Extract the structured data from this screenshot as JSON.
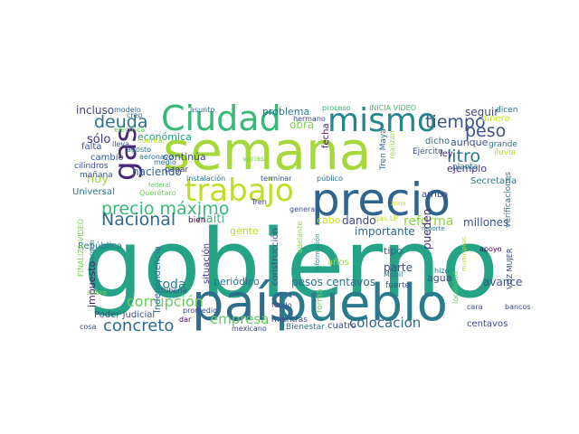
{
  "words": [
    {
      "text": "gobierno",
      "color": "#25a386"
    },
    {
      "text": "semana",
      "color": "#a6d83c"
    },
    {
      "text": "pueblo",
      "color": "#2a7a8e"
    },
    {
      "text": "país",
      "color": "#2d6e8e"
    },
    {
      "text": "precio",
      "color": "#31648d"
    },
    {
      "text": "mismo",
      "color": "#26868d"
    },
    {
      "text": "Ciudad",
      "color": "#38b978"
    },
    {
      "text": "trabajo",
      "color": "#bddf26"
    },
    {
      "text": "gas",
      "color": "#482878"
    },
    {
      "text": "precio máximo",
      "color": "#3aba76"
    },
    {
      "text": "tiempo",
      "color": "#3a538b"
    },
    {
      "text": "deuda",
      "color": "#2c738e"
    },
    {
      "text": "Nacional",
      "color": "#2f6b8e"
    },
    {
      "text": "peso",
      "color": "#3b518b"
    },
    {
      "text": "litro",
      "color": "#2b758e"
    },
    {
      "text": "colocación",
      "color": "#2f6c8e"
    },
    {
      "text": "concreto",
      "color": "#2f6b8e"
    },
    {
      "text": "corrupción",
      "color": "#6ccd5a"
    },
    {
      "text": "empresa",
      "color": "#60ca60"
    },
    {
      "text": "toda",
      "color": "#26818e"
    },
    {
      "text": "reforma",
      "color": "#8ad547"
    },
    {
      "text": "Haití",
      "color": "#35b779"
    },
    {
      "text": "obra",
      "color": "#7fd34e"
    },
    {
      "text": "sólo",
      "color": "#453781"
    },
    {
      "text": "hoy",
      "color": "#9bd93c"
    },
    {
      "text": "haciendo",
      "color": "#33638d"
    },
    {
      "text": "incluso",
      "color": "#3f4889"
    },
    {
      "text": "económica",
      "color": "#21a685"
    },
    {
      "text": "problema",
      "color": "#29798e"
    },
    {
      "text": "seguir",
      "color": "#3e4989"
    },
    {
      "text": "dinero",
      "color": "#c8e020"
    },
    {
      "text": "aunque",
      "color": "#3e4c8a"
    },
    {
      "text": "importante",
      "color": "#31668e"
    },
    {
      "text": "dando",
      "color": "#414287"
    },
    {
      "text": "millones",
      "color": "#3b528b"
    },
    {
      "text": "pesos centavos",
      "color": "#2f6c8e"
    },
    {
      "text": "parte",
      "color": "#3d4e8a"
    },
    {
      "text": "pueden",
      "color": "#472d7b"
    },
    {
      "text": "tipo",
      "color": "#31678e"
    },
    {
      "text": "agua",
      "color": "#3e4a89"
    },
    {
      "text": "avance",
      "color": "#3b528b"
    },
    {
      "text": "periódico",
      "color": "#2c728e"
    },
    {
      "text": "continúa",
      "color": "#3f4788"
    },
    {
      "text": "gente",
      "color": "#bade28"
    },
    {
      "text": "cabo",
      "color": "#d0e11c"
    },
    {
      "text": "ejemplo",
      "color": "#46307e"
    },
    {
      "text": "Secretaría",
      "color": "#27808e"
    },
    {
      "text": "arriba",
      "color": "#3e4a89"
    },
    {
      "text": "centavos",
      "color": "#3e4a89"
    },
    {
      "text": "cuatro",
      "color": "#3e4a89"
    },
    {
      "text": "Poder Judicial",
      "color": "#3b528b"
    },
    {
      "text": "Bienestar",
      "color": "#2c728e"
    },
    {
      "text": "mientras",
      "color": "#3e4c8a"
    },
    {
      "text": "impuesto",
      "color": "#48186a"
    },
    {
      "text": "República",
      "color": "#2a778e"
    },
    {
      "text": "Universal",
      "color": "#2a788e"
    },
    {
      "text": "cambio",
      "color": "#39558c"
    },
    {
      "text": "falta",
      "color": "#3b528b"
    },
    {
      "text": "mañana",
      "color": "#39568c"
    },
    {
      "text": "cilindros",
      "color": "#3e4989"
    },
    {
      "text": "construcción",
      "color": "#3b528b"
    },
    {
      "text": "situación",
      "color": "#46327e"
    },
    {
      "text": "Independencia",
      "color": "#2c728e"
    },
    {
      "text": "forma",
      "color": "#7ad151"
    },
    {
      "text": "años",
      "color": "#9fda3a"
    },
    {
      "text": "fecha",
      "color": "#481769"
    },
    {
      "text": "Tren Maya",
      "color": "#2c718e"
    },
    {
      "text": "realizan",
      "color": "#a2da37"
    },
    {
      "text": "dicho",
      "color": "#2e6e8e"
    },
    {
      "text": "ley",
      "color": "#482173"
    },
    {
      "text": "grande",
      "color": "#2a778e"
    },
    {
      "text": "planta",
      "color": "#2b748e"
    },
    {
      "text": "lluvia",
      "color": "#b5de2b"
    },
    {
      "text": "verificaciones",
      "color": "#2a788e"
    },
    {
      "text": "INICIA VIDEO",
      "color": "#44bf70"
    },
    {
      "text": "proceso",
      "color": "#35b779"
    },
    {
      "text": "dicen",
      "color": "#2c728e"
    },
    {
      "text": "hermano",
      "color": "#3e4c8a"
    },
    {
      "text": "asunto",
      "color": "#2c718e"
    },
    {
      "text": "modelo",
      "color": "#33638d"
    },
    {
      "text": "creo",
      "color": "#2d708e"
    },
    {
      "text": "eléctrica",
      "color": "#6ece58"
    },
    {
      "text": "cuenta",
      "color": "#bddf26"
    },
    {
      "text": "aeronave",
      "color": "#2c738e"
    },
    {
      "text": "medio",
      "color": "#2c718e"
    },
    {
      "text": "pagar",
      "color": "#3e4989"
    },
    {
      "text": "varias",
      "color": "#7ad151"
    },
    {
      "text": "instalación",
      "color": "#2c738e"
    },
    {
      "text": "terminar",
      "color": "#3b528b"
    },
    {
      "text": "público",
      "color": "#2c718e"
    },
    {
      "text": "información",
      "color": "#21918c"
    },
    {
      "text": "gas LP",
      "color": "#b5de2b"
    },
    {
      "text": "Ejército",
      "color": "#3b528b"
    },
    {
      "text": "zona",
      "color": "#c8e020"
    },
    {
      "text": "federal",
      "color": "#5ec962"
    },
    {
      "text": "Querétaro",
      "color": "#6ece58"
    },
    {
      "text": "agosto",
      "color": "#2c718e"
    },
    {
      "text": "lleva",
      "color": "#3b528b"
    },
    {
      "text": "Tren",
      "color": "#3e4a89"
    },
    {
      "text": "general",
      "color": "#3e4989"
    },
    {
      "text": "bien",
      "color": "#440154"
    },
    {
      "text": "adelante",
      "color": "#8fd744"
    },
    {
      "text": "fondo",
      "color": "#3e4989"
    },
    {
      "text": "promedio",
      "color": "#3e4a89"
    },
    {
      "text": "dar",
      "color": "#440154"
    },
    {
      "text": "mexicano",
      "color": "#3e4989"
    },
    {
      "text": "tubería",
      "color": "#3b528b"
    },
    {
      "text": "sobre",
      "color": "#7ad151"
    },
    {
      "text": "cosa",
      "color": "#3e4989"
    },
    {
      "text": "margen",
      "color": "#2c728e"
    },
    {
      "text": "FINALIZA VIDEO",
      "color": "#7ad151"
    },
    {
      "text": "fuerte",
      "color": "#3b528b"
    },
    {
      "text": "Mobil",
      "color": "#2c718e"
    },
    {
      "text": "hizo",
      "color": "#2c728e"
    },
    {
      "text": "reporte",
      "color": "#2c728e"
    },
    {
      "text": "municipios",
      "color": "#b5de2b"
    },
    {
      "text": "localidad",
      "color": "#5ec962"
    },
    {
      "text": "cara",
      "color": "#3e4989"
    },
    {
      "text": "apoyo",
      "color": "#440154"
    },
    {
      "text": "VOZ MUJER",
      "color": "#3e4989"
    },
    {
      "text": "bancos",
      "color": "#3e4989"
    }
  ]
}
